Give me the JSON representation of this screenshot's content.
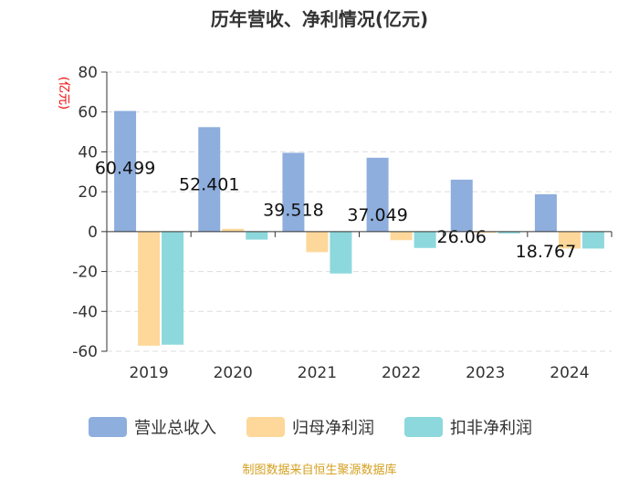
{
  "chart_data": {
    "type": "bar",
    "title": "历年营收、净利情况(亿元)",
    "ylabel": "(亿元)",
    "xlabel": "",
    "ylim": [
      -60,
      80
    ],
    "yticks": [
      80,
      60,
      40,
      20,
      0,
      -20,
      -40,
      -60
    ],
    "grid": true,
    "legend_position": "bottom",
    "categories": [
      "2019",
      "2020",
      "2021",
      "2022",
      "2023",
      "2024"
    ],
    "series": [
      {
        "name": "营业总收入",
        "color": "#8eaedd",
        "values": [
          60.499,
          52.401,
          39.518,
          37.049,
          26.06,
          18.767
        ],
        "labels": [
          "60.499",
          "52.401",
          "39.518",
          "37.049",
          "26.06",
          "18.767"
        ]
      },
      {
        "name": "归母净利润",
        "color": "#fdd89a",
        "values": [
          -57.2,
          1.4,
          -10.3,
          -4.3,
          -0.6,
          -8.5
        ]
      },
      {
        "name": "扣非净利润",
        "color": "#8dd8dc",
        "values": [
          -56.7,
          -4.0,
          -21.0,
          -8.2,
          -0.9,
          -8.5
        ]
      }
    ],
    "source": "制图数据来自恒生聚源数据库"
  }
}
